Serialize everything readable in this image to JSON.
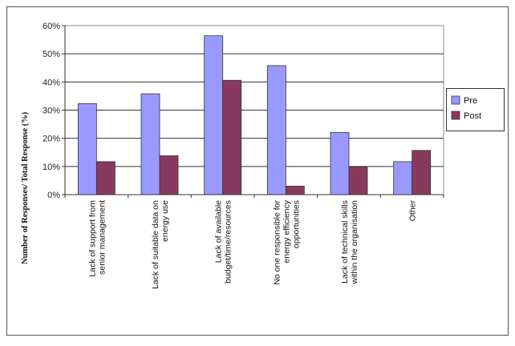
{
  "chart_data": {
    "type": "bar",
    "title": "",
    "xlabel": "",
    "ylabel": "Number of Responses/ Total Response (%)",
    "ylim": [
      0,
      60
    ],
    "yticks": [
      "0%",
      "10%",
      "20%",
      "30%",
      "40%",
      "50%",
      "60%"
    ],
    "grid": true,
    "legend_position": "right",
    "categories": [
      [
        "Lack of support from",
        "senior management"
      ],
      [
        "Lack of suitable data on",
        "energy use"
      ],
      [
        "Lack of available",
        "budget/time/resources"
      ],
      [
        "No one responsible for",
        "energy efficiency",
        "opportunities"
      ],
      [
        "Lack of technical skills",
        "within the organisation"
      ],
      [
        "Other"
      ]
    ],
    "series": [
      {
        "name": "Pre",
        "color": "#9999ff",
        "values": [
          32.3,
          35.8,
          56.4,
          45.8,
          22.1,
          11.7
        ]
      },
      {
        "name": "Post",
        "color": "#883a5e",
        "values": [
          11.7,
          13.8,
          40.6,
          3.0,
          9.8,
          15.7
        ]
      }
    ]
  }
}
